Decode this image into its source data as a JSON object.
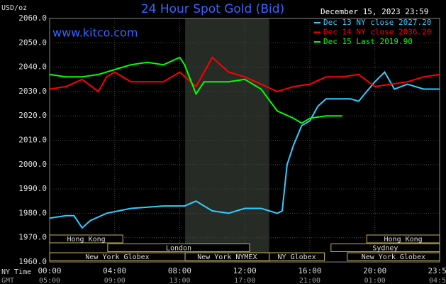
{
  "chart_data": {
    "type": "line",
    "title": "24 Hour Spot Gold (Bid)",
    "subtitle": "www.kitco.com",
    "timestamp": "December 15, 2023 23:59",
    "y_label": "USD/oz",
    "x_label": "NY Time",
    "x2_label": "GMT",
    "xlim": [
      0,
      23.98
    ],
    "ylim": [
      1960,
      2060
    ],
    "highlight_xlim": [
      8.33,
      13.5
    ],
    "grid": true,
    "legend": "top-right",
    "xticks": [
      {
        "value": 0,
        "label": "00:00"
      },
      {
        "value": 4,
        "label": "04:00"
      },
      {
        "value": 8,
        "label": "08:00"
      },
      {
        "value": 12,
        "label": "12:00"
      },
      {
        "value": 16,
        "label": "16:00"
      },
      {
        "value": 20,
        "label": "20:00"
      },
      {
        "value": 23.98,
        "label": "23:59"
      }
    ],
    "x2ticks": [
      "05:00",
      "09:00",
      "13:00",
      "17:00",
      "21:00",
      "01:00",
      "04:59"
    ],
    "yticks": [
      {
        "value": 2060,
        "label": "2060.0"
      },
      {
        "value": 2050,
        "label": "2050.0"
      },
      {
        "value": 2040,
        "label": "2040.0"
      },
      {
        "value": 2030,
        "label": "2030.0"
      },
      {
        "value": 2020,
        "label": "2020.0"
      },
      {
        "value": 2010,
        "label": "2010.0"
      },
      {
        "value": 2000,
        "label": "2000.0"
      },
      {
        "value": 1990,
        "label": "1990.0"
      },
      {
        "value": 1980,
        "label": "1980.0"
      },
      {
        "value": 1970,
        "label": "1970.0"
      },
      {
        "value": 1960,
        "label": "1960.0"
      }
    ],
    "sessions": [
      "Hong Kong",
      "London",
      "New York Globex",
      "New York NYMEX",
      "NY Globex",
      "Hong Kong",
      "Sydney",
      "New York Globex"
    ],
    "series": [
      {
        "name": "Dec 13 NY close 2027.20",
        "color": "#33ccff",
        "x": [
          0,
          1,
          1.5,
          2,
          2.5,
          3.5,
          5,
          7,
          8.3,
          9,
          10,
          11,
          12,
          13,
          14,
          14.3,
          14.6,
          15,
          15.5,
          16,
          16.5,
          17,
          18.5,
          19,
          19.5,
          20,
          20.6,
          21.2,
          22,
          23,
          23.98
        ],
        "values": [
          1978,
          1979,
          1979,
          1974,
          1977,
          1980,
          1982,
          1983,
          1983,
          1985,
          1981,
          1980,
          1982,
          1982,
          1980,
          1981,
          2000,
          2008,
          2016,
          2018,
          2024,
          2027,
          2027,
          2026,
          2030,
          2034,
          2038,
          2031,
          2033,
          2031,
          2031
        ]
      },
      {
        "name": "Dec 14 NY close 2036.20",
        "color": "#ff0000",
        "x": [
          0,
          1,
          2,
          3,
          3.5,
          4,
          5,
          7,
          8,
          9,
          10,
          11,
          12,
          13,
          14,
          15,
          16,
          17,
          18,
          19,
          20,
          21,
          22,
          23,
          23.98
        ],
        "values": [
          2031,
          2032,
          2035,
          2030,
          2036,
          2038,
          2034,
          2034,
          2038,
          2032,
          2044,
          2038,
          2036,
          2033,
          2030,
          2032,
          2033,
          2036,
          2036,
          2037,
          2032,
          2033,
          2034,
          2036,
          2037
        ]
      },
      {
        "name": "Dec 15 Last 2019.90",
        "color": "#00ff00",
        "x": [
          0,
          1,
          2,
          3,
          4,
          5,
          6,
          7,
          8,
          8.3,
          9,
          9.5,
          11,
          12,
          13,
          14,
          15,
          15.5,
          16,
          17,
          18
        ],
        "values": [
          2037,
          2036,
          2036,
          2037,
          2039,
          2041,
          2042,
          2041,
          2044,
          2041,
          2029,
          2034,
          2034,
          2035,
          2031,
          2022,
          2019,
          2017,
          2019,
          2020,
          2020
        ]
      }
    ]
  }
}
